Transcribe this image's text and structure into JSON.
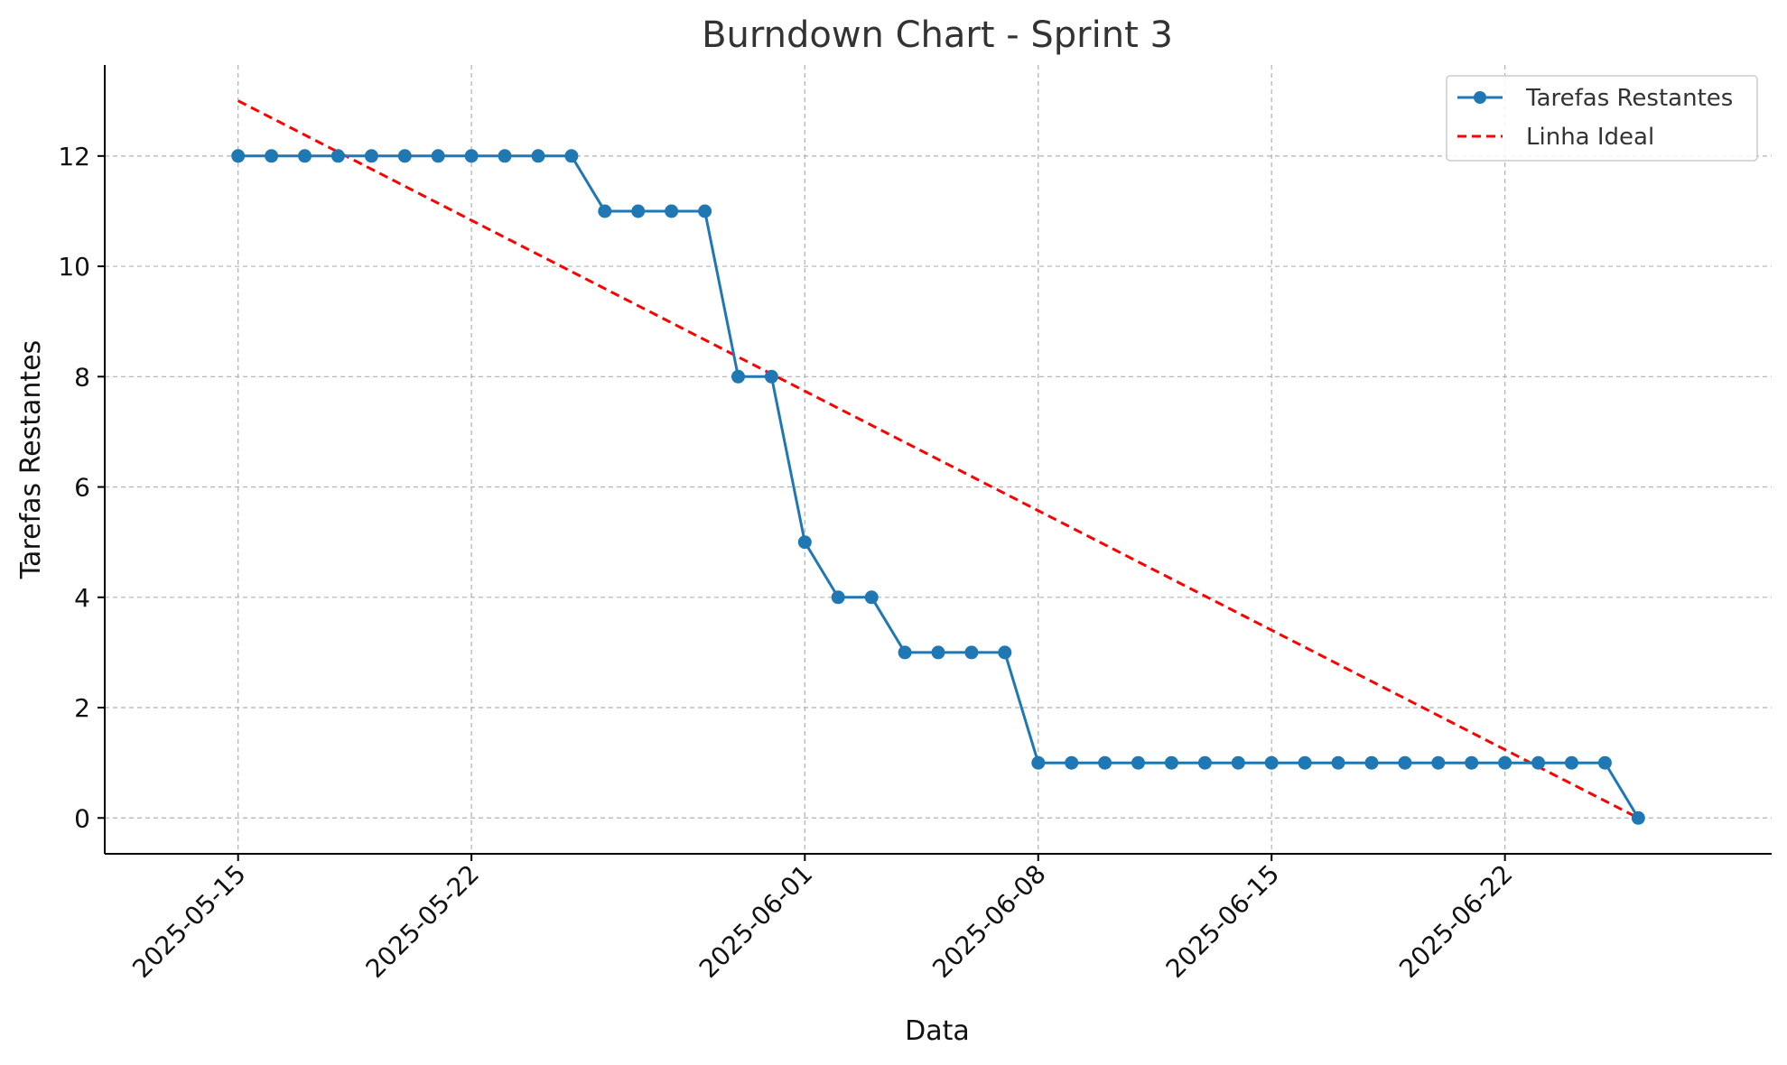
{
  "chart_data": {
    "type": "line",
    "title": "Burndown Chart - Sprint 3",
    "xlabel": "Data",
    "ylabel": "Tarefas Restantes",
    "x_range": [
      "2025-05-11",
      "2025-06-30"
    ],
    "ylim": [
      -0.65,
      13.65
    ],
    "y_ticks": [
      0,
      2,
      4,
      6,
      8,
      10,
      12
    ],
    "x_ticks": [
      "2025-05-15",
      "2025-05-22",
      "2025-06-01",
      "2025-06-08",
      "2025-06-15",
      "2025-06-22"
    ],
    "grid": true,
    "legend_position": "top-right",
    "series": [
      {
        "name": "Tarefas Restantes",
        "style": "line-with-markers",
        "color": "#1f77b4",
        "x": [
          "2025-05-15",
          "2025-05-16",
          "2025-05-17",
          "2025-05-18",
          "2025-05-19",
          "2025-05-20",
          "2025-05-21",
          "2025-05-22",
          "2025-05-23",
          "2025-05-24",
          "2025-05-25",
          "2025-05-26",
          "2025-05-27",
          "2025-05-28",
          "2025-05-29",
          "2025-05-30",
          "2025-05-31",
          "2025-06-01",
          "2025-06-02",
          "2025-06-03",
          "2025-06-04",
          "2025-06-05",
          "2025-06-06",
          "2025-06-07",
          "2025-06-08",
          "2025-06-09",
          "2025-06-10",
          "2025-06-11",
          "2025-06-12",
          "2025-06-13",
          "2025-06-14",
          "2025-06-15",
          "2025-06-16",
          "2025-06-17",
          "2025-06-18",
          "2025-06-19",
          "2025-06-20",
          "2025-06-21",
          "2025-06-22",
          "2025-06-23",
          "2025-06-24",
          "2025-06-25",
          "2025-06-26"
        ],
        "values": [
          12,
          12,
          12,
          12,
          12,
          12,
          12,
          12,
          12,
          12,
          12,
          11,
          11,
          11,
          11,
          8,
          8,
          5,
          4,
          4,
          3,
          3,
          3,
          3,
          1,
          1,
          1,
          1,
          1,
          1,
          1,
          1,
          1,
          1,
          1,
          1,
          1,
          1,
          1,
          1,
          1,
          1,
          0
        ]
      },
      {
        "name": "Linha Ideal",
        "style": "dashed",
        "color": "#ff0000",
        "x": [
          "2025-05-15",
          "2025-06-26"
        ],
        "values": [
          13,
          0
        ]
      }
    ]
  }
}
